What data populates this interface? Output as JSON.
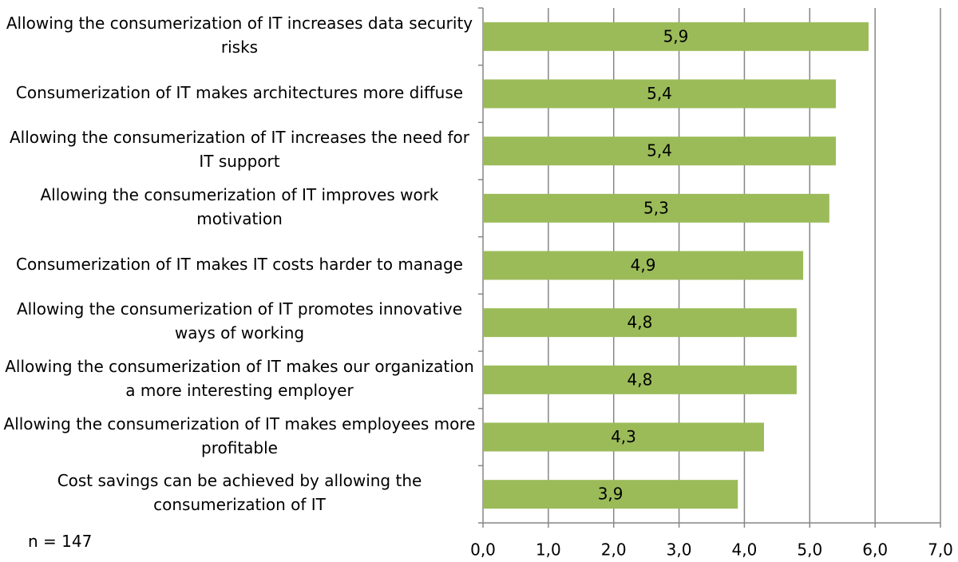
{
  "chart_data": {
    "type": "barh",
    "categories": [
      "Allowing the consumerization of IT increases data security risks",
      "Consumerization of IT makes architectures more diffuse",
      "Allowing the consumerization of IT increases the need for IT support",
      "Allowing the consumerization of IT improves work motivation",
      "Consumerization of IT makes IT costs harder to manage",
      "Allowing the consumerization of IT promotes innovative ways of working",
      "Allowing the consumerization of IT makes our organization a more interesting employer",
      "Allowing the consumerization of IT makes employees more profitable",
      "Cost savings can be achieved by allowing the consumerization of IT"
    ],
    "values": [
      5.9,
      5.4,
      5.4,
      5.3,
      4.9,
      4.8,
      4.8,
      4.3,
      3.9
    ],
    "value_labels": [
      "5,9",
      "5,4",
      "5,4",
      "5,3",
      "4,9",
      "4,8",
      "4,8",
      "4,3",
      "3,9"
    ],
    "color": "#9bbb59",
    "xlim": [
      0,
      7
    ],
    "xticks": [
      {
        "value": 0,
        "label": "0,0"
      },
      {
        "value": 1,
        "label": "1,0"
      },
      {
        "value": 2,
        "label": "2,0"
      },
      {
        "value": 3,
        "label": "3,0"
      },
      {
        "value": 4,
        "label": "4,0"
      },
      {
        "value": 5,
        "label": "5,0"
      },
      {
        "value": 6,
        "label": "6,0"
      },
      {
        "value": 7,
        "label": "7,0"
      }
    ],
    "grid": true,
    "annotation": "n = 147"
  }
}
